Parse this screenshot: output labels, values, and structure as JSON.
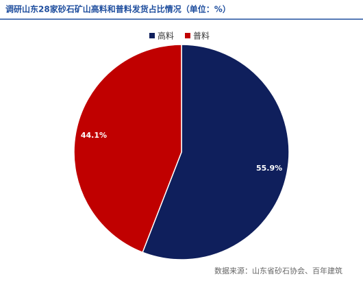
{
  "chart_data": {
    "type": "pie",
    "title": "调研山东28家砂石矿山高料和普料发货占比情况（单位：%）",
    "categories": [
      "高料",
      "普料"
    ],
    "values": [
      55.9,
      44.1
    ],
    "value_labels": [
      "55.9%",
      "44.1%"
    ],
    "colors": [
      "#0f1f5c",
      "#c00000"
    ],
    "source": "数据来源：山东省砂石协会、百年建筑"
  }
}
